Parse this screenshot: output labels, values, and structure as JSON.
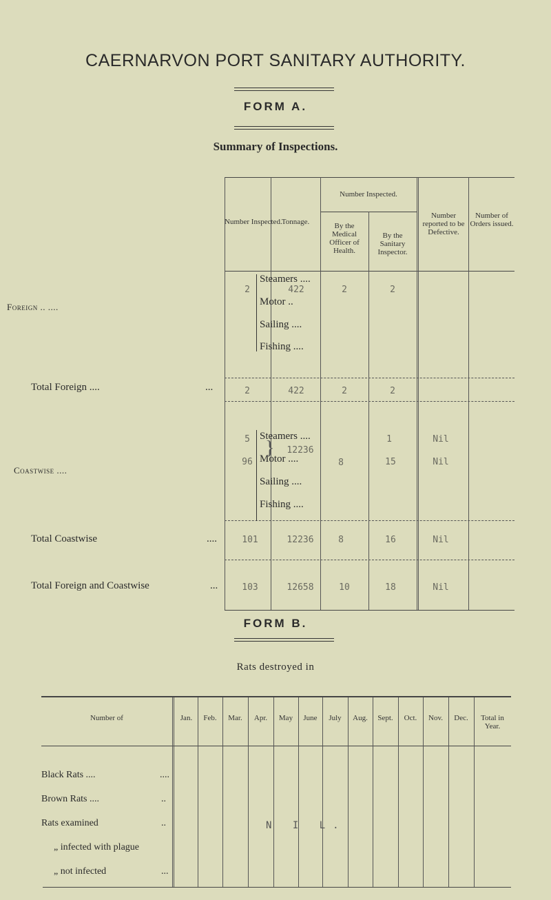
{
  "header": {
    "title": "CAERNARVON PORT SANITARY AUTHORITY.",
    "form_a": "FORM A.",
    "subtitle": "Summary of Inspections."
  },
  "form_a": {
    "columns": {
      "number_inspected": "Number Inspected.",
      "tonnage": "Tonnage.",
      "number_inspected_group": "Number Inspected.",
      "by_medical": "By the Medical Officer of Health.",
      "by_sanitary": "By the Sanitary Inspector.",
      "defective": "Number reported to be Defective.",
      "orders": "Number of Orders issued."
    },
    "foreign": {
      "label": "Foreign .. ....",
      "types": [
        "Steamers ....",
        "Motor ..",
        "Sailing ....",
        "Fishing ...."
      ],
      "steamers": {
        "number": "2",
        "tonnage": "422",
        "medical": "2",
        "sanitary": "2"
      }
    },
    "total_foreign": {
      "label": "Total Foreign ....",
      "dots": "...",
      "number": "2",
      "tonnage": "422",
      "medical": "2",
      "sanitary": "2"
    },
    "coastwise": {
      "label": "Coastwise ....",
      "types": [
        "Steamers ....",
        "Motor ....",
        "Sailing ....",
        "Fishing ...."
      ],
      "steamers": {
        "number": "5",
        "sanitary": "1",
        "defective": "Nil"
      },
      "motor": {
        "number": "96",
        "sanitary": "15",
        "defective": "Nil"
      },
      "tonnage": "12236",
      "medical": "8"
    },
    "total_coastwise": {
      "label": "Total Coastwise",
      "dots": "....",
      "number": "101",
      "tonnage": "12236",
      "medical": "8",
      "sanitary": "16",
      "defective": "Nil"
    },
    "grand_total": {
      "label": "Total Foreign and Coastwise",
      "dots": "...",
      "number": "103",
      "tonnage": "12658",
      "medical": "10",
      "sanitary": "18",
      "defective": "Nil"
    }
  },
  "form_b": {
    "title": "FORM B.",
    "subtitle": "Rats destroyed in",
    "first_header": "Number of",
    "months": [
      "Jan.",
      "Feb.",
      "Mar.",
      "Apr.",
      "May",
      "June",
      "July",
      "Aug.",
      "Sept.",
      "Oct.",
      "Nov.",
      "Dec.",
      "Total in Year."
    ],
    "rows": [
      "Black Rats ....",
      "Brown Rats ....",
      "Rats examined",
      "„ infected with plague",
      "„ not infected"
    ],
    "row_dots": [
      "....",
      "..",
      "..",
      "",
      "..."
    ],
    "nil": "N I L."
  },
  "colors": {
    "paper": "#dcdcbc",
    "ink": "#2a2a2a",
    "typewriter": "#6a6a60"
  }
}
